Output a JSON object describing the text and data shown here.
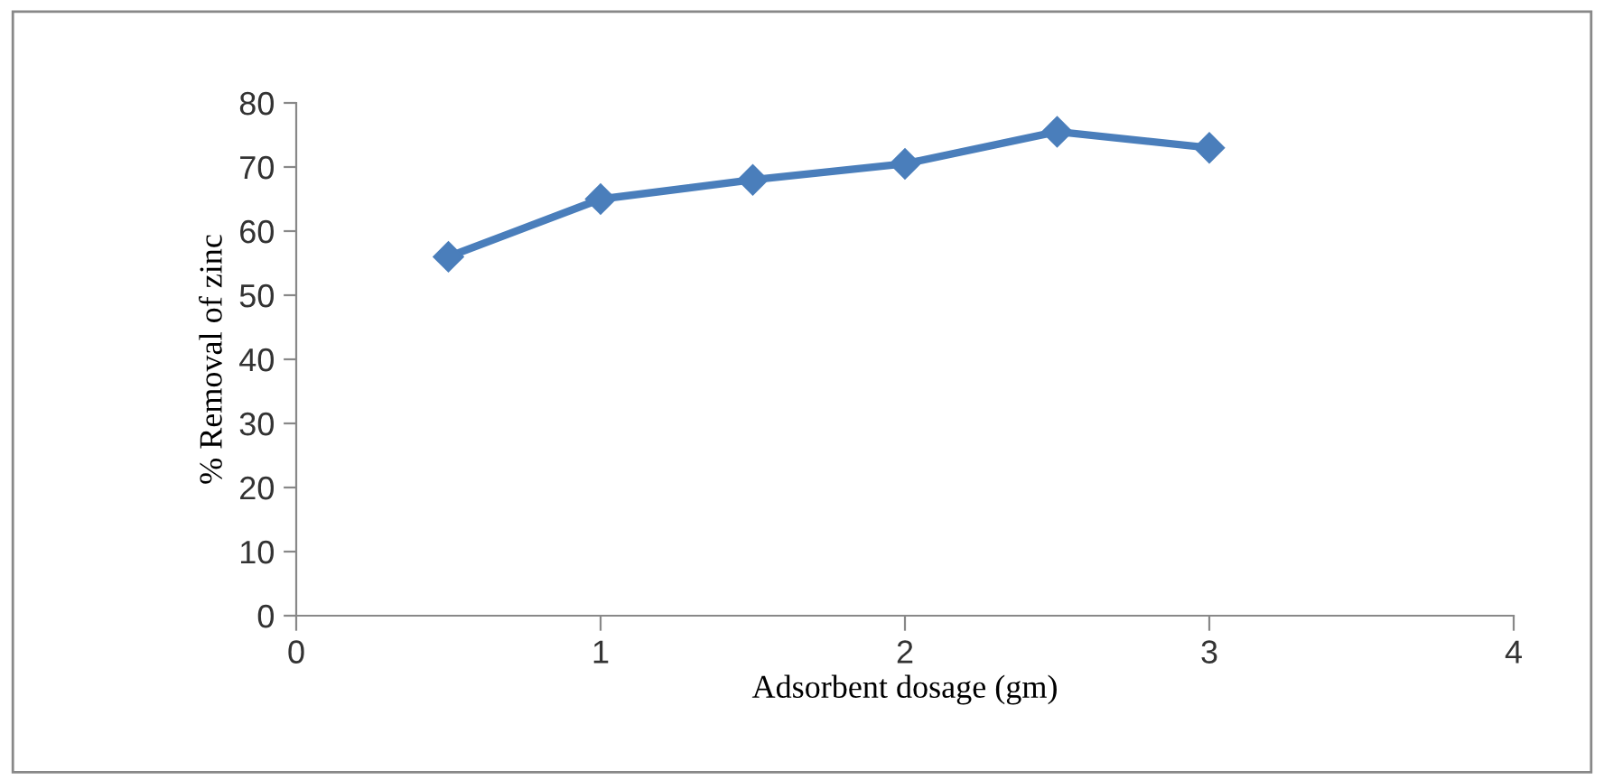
{
  "chart_data": {
    "type": "line",
    "xlabel": "Adsorbent dosage (gm)",
    "ylabel": "% Removal of zinc",
    "x": [
      0.5,
      1,
      1.5,
      2,
      2.5,
      3
    ],
    "series": [
      {
        "color": "#4a7ebb",
        "values": [
          56,
          65,
          68,
          70.5,
          75.5,
          73
        ]
      }
    ],
    "xlim": [
      0,
      4
    ],
    "xticks": [
      0,
      1,
      2,
      3,
      4
    ],
    "ylim": [
      0,
      80
    ],
    "yticks": [
      0,
      10,
      20,
      30,
      40,
      50,
      60,
      70,
      80
    ],
    "grid": false,
    "legend": false,
    "marker": "diamond",
    "line_style": "solid"
  }
}
